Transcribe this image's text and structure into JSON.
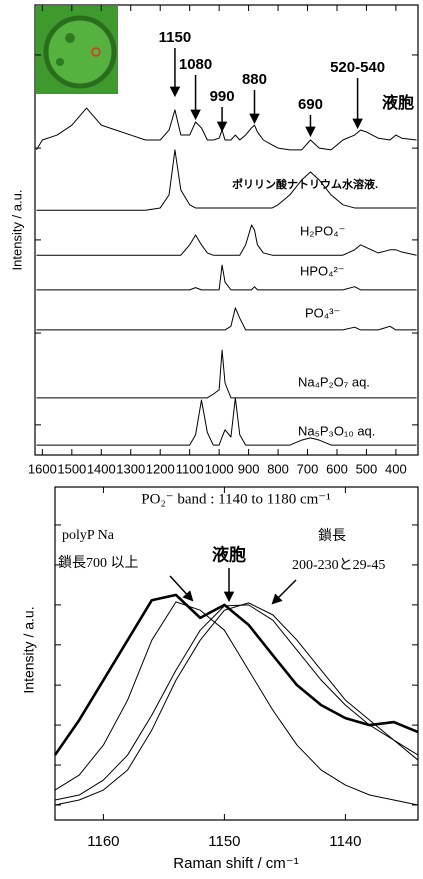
{
  "chart_data": [
    {
      "type": "line",
      "ylabel": "Intensity / a.u.",
      "xlim": [
        1625,
        325
      ],
      "xticks": [
        1600,
        1500,
        1400,
        1300,
        1200,
        1100,
        1000,
        900,
        800,
        700,
        600,
        500,
        400
      ],
      "ylim": [
        0,
        100
      ],
      "yticks": [
        6.7,
        27.1,
        47.8,
        68.2,
        88.9
      ],
      "ytick_labels": false,
      "annotations": [
        {
          "text": "1150",
          "x": 1150
        },
        {
          "text": "1080",
          "x": 1080
        },
        {
          "text": "990",
          "x": 990
        },
        {
          "text": "880",
          "x": 880
        },
        {
          "text": "690",
          "x": 690
        },
        {
          "text": "520-540",
          "x": 530
        }
      ],
      "x": [
        1620,
        1600,
        1550,
        1500,
        1450,
        1400,
        1350,
        1300,
        1250,
        1200,
        1170,
        1150,
        1130,
        1100,
        1080,
        1060,
        1040,
        1020,
        1000,
        990,
        980,
        960,
        945,
        930,
        910,
        890,
        880,
        870,
        850,
        820,
        800,
        760,
        720,
        690,
        660,
        620,
        580,
        540,
        520,
        500,
        460,
        420,
        400,
        380,
        330
      ],
      "series": [
        {
          "name": "液胞",
          "color": "#000000",
          "line_width": 1,
          "values": [
            67.8,
            70,
            71.1,
            73.3,
            77.1,
            73.3,
            72.2,
            71.1,
            70,
            70,
            72.2,
            76.7,
            71.1,
            71.1,
            74,
            72.7,
            70,
            70,
            70.4,
            72.2,
            70,
            70,
            71.1,
            70,
            71.1,
            72.7,
            73.3,
            71.8,
            70,
            68.9,
            68.2,
            67.8,
            67.8,
            70,
            68.2,
            67.8,
            70,
            71.1,
            72.2,
            71.8,
            70.4,
            70,
            71.1,
            70.4,
            70
          ]
        },
        {
          "name": "ポリリン酸ナトリウム水溶液.",
          "color": "#000000",
          "line_width": 1,
          "values": [
            54.4,
            54.4,
            54.4,
            54.4,
            54.4,
            54.4,
            54.4,
            54.4,
            54.4,
            54.9,
            57.8,
            67.8,
            58.9,
            55.6,
            54.9,
            54.9,
            54.9,
            54.9,
            54.9,
            54.9,
            54.9,
            54.9,
            54.9,
            54.9,
            54.9,
            54.9,
            54.9,
            54.9,
            54.9,
            54.9,
            55.6,
            57.8,
            61.1,
            62.9,
            61.1,
            57.8,
            55.6,
            54.9,
            54.9,
            54.9,
            54.9,
            54.9,
            54.9,
            54.9,
            54.9
          ]
        },
        {
          "name": "H₂PO₄⁻",
          "color": "#000000",
          "line_width": 1,
          "values": [
            44.4,
            44.4,
            44.4,
            44.4,
            44.4,
            44.4,
            44.4,
            44.4,
            44.4,
            44.4,
            44.4,
            44.4,
            44.4,
            46.7,
            48.9,
            46.7,
            44.9,
            44.4,
            44.4,
            44.4,
            44.4,
            44.4,
            44.4,
            44.4,
            46.7,
            51.1,
            50,
            46.7,
            44.9,
            44.4,
            44.4,
            44.4,
            44.4,
            44.4,
            44.4,
            44.4,
            44.4,
            45.6,
            46.7,
            46.1,
            44.9,
            45.6,
            45.6,
            45.1,
            44.4
          ]
        },
        {
          "name": "HPO₄²⁻",
          "color": "#000000",
          "line_width": 1,
          "values": [
            36.7,
            36.7,
            36.7,
            36.7,
            36.7,
            36.7,
            36.7,
            36.7,
            36.7,
            36.7,
            36.7,
            36.7,
            36.7,
            36.7,
            37.2,
            36.7,
            36.7,
            36.7,
            36.7,
            42.2,
            38.4,
            36.7,
            36.7,
            36.7,
            36.7,
            36.7,
            37.4,
            36.7,
            36.7,
            36.7,
            36.7,
            36.7,
            36.7,
            36.7,
            36.7,
            36.7,
            36.7,
            37.4,
            36.7,
            36.7,
            36.7,
            36.7,
            36.7,
            36.7,
            36.7
          ]
        },
        {
          "name": "PO₄³⁻",
          "color": "#000000",
          "line_width": 1,
          "values": [
            27.8,
            27.8,
            27.8,
            27.8,
            27.8,
            27.8,
            27.8,
            27.8,
            27.8,
            27.8,
            27.8,
            27.8,
            27.8,
            27.8,
            27.8,
            27.8,
            27.8,
            27.8,
            27.8,
            27.8,
            27.8,
            28.6,
            32.7,
            30.4,
            27.8,
            27.8,
            27.8,
            27.8,
            27.8,
            27.8,
            27.8,
            27.8,
            27.8,
            27.8,
            27.8,
            27.8,
            27.8,
            28.4,
            27.8,
            27.8,
            27.8,
            28.6,
            27.8,
            27.8,
            27.8
          ]
        },
        {
          "name": "Na₄P₂O₇ aq.",
          "color": "#000000",
          "line_width": 1,
          "values": [
            12.7,
            12.7,
            12.7,
            12.7,
            12.7,
            12.7,
            12.7,
            12.7,
            12.7,
            12.7,
            12.7,
            12.7,
            12.7,
            12.7,
            12.7,
            12.7,
            12.7,
            13.5,
            14.5,
            23.3,
            16,
            12.7,
            12.7,
            12.7,
            12.7,
            12.7,
            12.7,
            12.7,
            12.7,
            12.7,
            12.7,
            12.7,
            12.7,
            12.7,
            12.7,
            12.7,
            12.7,
            12.7,
            12.7,
            12.7,
            12.7,
            12.7,
            12.7,
            12.7,
            12.7
          ]
        },
        {
          "name": "Na₅P₃O₁₀ aq.",
          "color": "#000000",
          "line_width": 1,
          "values": [
            2.2,
            2.2,
            2.2,
            2.2,
            2.2,
            2.2,
            2.2,
            2.2,
            2.2,
            2.2,
            2.2,
            2.2,
            2.2,
            2.2,
            4.5,
            12.2,
            5,
            2.2,
            2.2,
            4,
            5.6,
            4,
            12.7,
            4.5,
            2.2,
            2.2,
            2.2,
            2.2,
            2.2,
            2.2,
            2.2,
            2.2,
            3.3,
            3.8,
            3.3,
            2.2,
            2.2,
            2.2,
            2.2,
            2.2,
            2.2,
            2.2,
            2.2,
            2.2,
            2.2
          ]
        }
      ]
    },
    {
      "type": "line",
      "title": "PO₂⁻ band : 1140 to 1180 cm⁻¹",
      "xlabel": "Raman shift / cm⁻¹",
      "ylabel": "Intensity / a.u.",
      "xlim": [
        1164,
        1134
      ],
      "xticks": [
        1160,
        1150,
        1140
      ],
      "ylim": [
        0,
        100
      ],
      "yticks": [
        4.5,
        16.5,
        28.5,
        40.5,
        52.6,
        64.6,
        76.6,
        88.6
      ],
      "ytick_labels": false,
      "annotations": [
        "polyP Na",
        "鎖長700 以上",
        "液胞",
        "鎖長",
        "200-230と29-45"
      ],
      "x": [
        1164,
        1162,
        1160,
        1158,
        1156,
        1154,
        1152,
        1150,
        1148,
        1146,
        1144,
        1142,
        1140,
        1138,
        1136,
        1134
      ],
      "series": [
        {
          "color": "#000000",
          "line_width": 2.6,
          "values": [
            19.5,
            30,
            42,
            54,
            66,
            67.6,
            60.7,
            64.6,
            58.6,
            49.5,
            40.5,
            34.5,
            30.6,
            28.5,
            29.4,
            26.4
          ]
        },
        {
          "color": "#000000",
          "line_width": 1,
          "values": [
            9,
            13.5,
            22.5,
            36,
            54,
            65.5,
            63,
            57,
            45,
            33,
            22.5,
            15,
            10.5,
            7.5,
            6,
            4.5
          ]
        },
        {
          "color": "#000000",
          "line_width": 1,
          "values": [
            6,
            7.5,
            12,
            19.5,
            31.5,
            45,
            57,
            64.3,
            64.6,
            60,
            51,
            42,
            34.5,
            28.5,
            24,
            19.5
          ]
        },
        {
          "color": "#000000",
          "line_width": 1,
          "values": [
            4.5,
            6,
            9,
            15,
            27,
            42,
            54,
            63,
            65.2,
            61.6,
            54,
            45,
            36,
            30,
            24,
            18
          ]
        }
      ]
    }
  ]
}
